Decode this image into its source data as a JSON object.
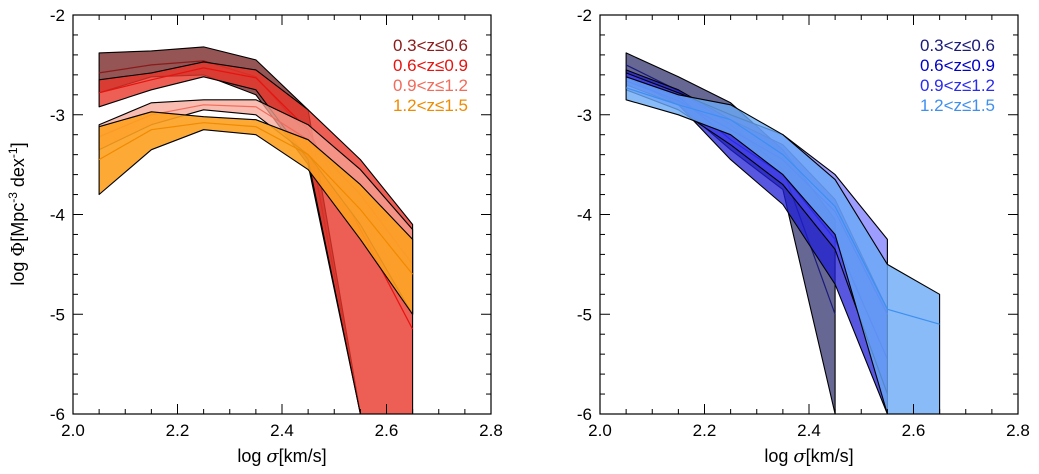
{
  "chart_data": [
    {
      "type": "area",
      "title": "",
      "xlabel_prefix": "log ",
      "xlabel_symbol": "σ",
      "xlabel_suffix": "[km/s]",
      "ylabel_prefix": "log ",
      "ylabel_symbol": "Φ",
      "ylabel_unit": "[Mpc",
      "ylabel_sup": "-3",
      "ylabel_mid": " dex",
      "ylabel_sup2": "-1",
      "ylabel_end": "]",
      "xlim": [
        2.0,
        2.8
      ],
      "ylim": [
        -6,
        -2
      ],
      "xticks": [
        2.0,
        2.2,
        2.4,
        2.6,
        2.8
      ],
      "xtick_labels": [
        "2.0",
        "2.2",
        "2.4",
        "2.6",
        "2.8"
      ],
      "yticks": [
        -2,
        -3,
        -4,
        -5,
        -6
      ],
      "ytick_labels": [
        "-2",
        "-3",
        "-4",
        "-5",
        "-6"
      ],
      "legend_placement": "top-right",
      "series": [
        {
          "name": "0.3<z≤0.6",
          "color": "#8B1A1A",
          "fill": "#7a2a2a",
          "fill_opacity": 0.8,
          "x": [
            2.05,
            2.15,
            2.25,
            2.35,
            2.45,
            2.55
          ],
          "upper": [
            -2.38,
            -2.36,
            -2.32,
            -2.45,
            -2.95,
            -6.0
          ],
          "lower": [
            -2.78,
            -2.62,
            -2.6,
            -2.8,
            -3.5,
            -6.0
          ],
          "center": [
            -2.58,
            -2.5,
            -2.46,
            -2.62,
            -3.2,
            -6.0
          ]
        },
        {
          "name": "0.6<z≤0.9",
          "color": "#E8130F",
          "fill": "#e8362a",
          "fill_opacity": 0.8,
          "x": [
            2.05,
            2.15,
            2.25,
            2.35,
            2.45,
            2.55,
            2.65
          ],
          "upper": [
            -2.65,
            -2.58,
            -2.47,
            -2.55,
            -2.95,
            -3.45,
            -4.1
          ],
          "lower": [
            -2.92,
            -2.75,
            -2.62,
            -2.75,
            -3.45,
            -6.0,
            -6.0
          ],
          "center": [
            -2.78,
            -2.65,
            -2.53,
            -2.63,
            -3.15,
            -4.15,
            -5.15
          ]
        },
        {
          "name": "0.9<z≤1.2",
          "color": "#F26B5B",
          "fill": "#f6a596",
          "fill_opacity": 0.75,
          "x": [
            2.05,
            2.15,
            2.25,
            2.35,
            2.45,
            2.55,
            2.65
          ],
          "upper": [
            -3.1,
            -2.88,
            -2.85,
            -2.85,
            -3.1,
            -3.55,
            -4.15
          ],
          "lower": [
            -3.35,
            -3.1,
            -2.95,
            -3.0,
            -3.4,
            -4.1,
            -5.0
          ],
          "center": [
            -3.22,
            -3.0,
            -2.9,
            -2.92,
            -3.25,
            -3.8,
            -4.5
          ]
        },
        {
          "name": "1.2<z≤1.5",
          "color": "#F08A00",
          "fill": "#fda020",
          "fill_opacity": 0.9,
          "x": [
            2.05,
            2.15,
            2.25,
            2.35,
            2.45,
            2.55,
            2.65
          ],
          "upper": [
            -3.12,
            -2.97,
            -3.02,
            -3.05,
            -3.25,
            -3.7,
            -4.25
          ],
          "lower": [
            -3.8,
            -3.35,
            -3.15,
            -3.2,
            -3.55,
            -4.25,
            -5.0
          ],
          "center": [
            -3.45,
            -3.15,
            -3.08,
            -3.12,
            -3.4,
            -3.95,
            -4.6
          ]
        }
      ]
    },
    {
      "type": "area",
      "title": "",
      "xlabel_prefix": "log ",
      "xlabel_symbol": "σ",
      "xlabel_suffix": "[km/s]",
      "xlim": [
        2.0,
        2.8
      ],
      "ylim": [
        -6,
        -2
      ],
      "xticks": [
        2.0,
        2.2,
        2.4,
        2.6,
        2.8
      ],
      "xtick_labels": [
        "2.0",
        "2.2",
        "2.4",
        "2.6",
        "2.8"
      ],
      "yticks": [
        -2,
        -3,
        -4,
        -5,
        -6
      ],
      "ytick_labels": [
        "-2",
        "-3",
        "-4",
        "-5",
        "-6"
      ],
      "legend_placement": "top-right",
      "series": [
        {
          "name": "0.3<z≤0.6",
          "color": "#1A1A7A",
          "fill": "#343470",
          "fill_opacity": 0.75,
          "x": [
            2.05,
            2.15,
            2.25,
            2.35,
            2.45
          ],
          "upper": [
            -2.38,
            -2.62,
            -2.88,
            -3.35,
            -4.05
          ],
          "lower": [
            -2.62,
            -2.9,
            -3.35,
            -3.75,
            -6.0
          ],
          "center": [
            -2.5,
            -2.76,
            -3.1,
            -3.55,
            -5.0
          ]
        },
        {
          "name": "0.6<z≤0.9",
          "color": "#0000C8",
          "fill": "#1f1fd6",
          "fill_opacity": 0.75,
          "x": [
            2.05,
            2.15,
            2.25,
            2.35,
            2.45,
            2.55
          ],
          "upper": [
            -2.55,
            -2.75,
            -3.05,
            -3.3,
            -3.85,
            -4.95
          ],
          "lower": [
            -2.7,
            -2.9,
            -3.45,
            -3.9,
            -4.7,
            -6.0
          ],
          "center": [
            -2.62,
            -2.82,
            -3.25,
            -3.6,
            -4.25,
            -5.45
          ]
        },
        {
          "name": "0.9<z≤1.2",
          "color": "#2A2AF0",
          "fill": "#4d4dff",
          "fill_opacity": 0.55,
          "x": [
            2.05,
            2.15,
            2.25,
            2.35,
            2.45,
            2.55
          ],
          "upper": [
            -2.58,
            -2.78,
            -3.0,
            -3.2,
            -3.6,
            -4.25
          ],
          "lower": [
            -2.75,
            -2.95,
            -3.3,
            -3.7,
            -4.35,
            -5.8
          ],
          "center": [
            -2.66,
            -2.86,
            -3.15,
            -3.45,
            -3.97,
            -5.0
          ]
        },
        {
          "name": "1.2<z≤1.5",
          "color": "#3F8FF0",
          "fill": "#6aaaf5",
          "fill_opacity": 0.8,
          "x": [
            2.05,
            2.15,
            2.25,
            2.35,
            2.45,
            2.55,
            2.65
          ],
          "upper": [
            -2.62,
            -2.8,
            -2.9,
            -3.2,
            -3.65,
            -4.5,
            -4.8
          ],
          "lower": [
            -2.85,
            -3.0,
            -3.2,
            -3.6,
            -4.2,
            -6.0,
            -6.0
          ],
          "center": [
            -2.73,
            -2.9,
            -3.05,
            -3.4,
            -3.92,
            -4.95,
            -5.1
          ]
        }
      ]
    }
  ]
}
